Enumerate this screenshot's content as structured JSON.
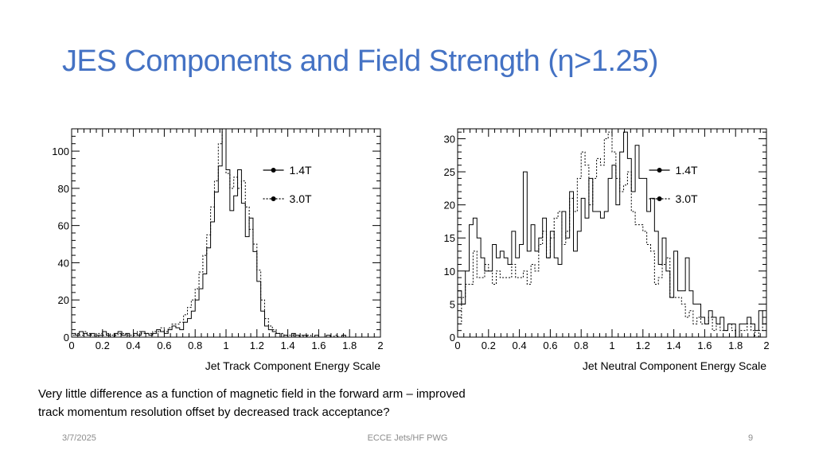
{
  "slide": {
    "title": "JES Components and Field Strength (η>1.25)",
    "caption_line1": "Very little difference as a function of magnetic field in the forward arm – improved",
    "caption_line2": "track momentum resolution offset by decreased track acceptance?",
    "footer_date": "3/7/2025",
    "footer_center": "ECCE Jets/HF PWG",
    "page_number": "9"
  },
  "colors": {
    "title": "#4472c4",
    "axes": "#000000",
    "footer": "#8c8c8c"
  },
  "chart_data": [
    {
      "type": "histogram",
      "xlabel": "Jet Track Component Energy Scale",
      "ylabel": "",
      "xlim": [
        0,
        2
      ],
      "ylim": [
        0,
        112
      ],
      "xticks": [
        0,
        0.2,
        0.4,
        0.6,
        0.8,
        1,
        1.2,
        1.4,
        1.6,
        1.8,
        2
      ],
      "xtick_labels": [
        "0",
        "0.2",
        "0.4",
        "0.6",
        "0.8",
        "1",
        "1.2",
        "1.4",
        "1.6",
        "1.8",
        "2"
      ],
      "yticks": [
        0,
        20,
        40,
        60,
        80,
        100
      ],
      "ytick_labels": [
        "0",
        "20",
        "40",
        "60",
        "80",
        "100"
      ],
      "legend_position": "top-right",
      "bin_edges_range": [
        0,
        2
      ],
      "series": [
        {
          "name": "1.4T",
          "style": "solid",
          "values": [
            2,
            1,
            3,
            2,
            1,
            2,
            0,
            1,
            3,
            1,
            0,
            2,
            3,
            1,
            2,
            0,
            2,
            1,
            3,
            2,
            1,
            2,
            4,
            3,
            2,
            4,
            6,
            5,
            4,
            8,
            10,
            14,
            20,
            26,
            34,
            48,
            62,
            78,
            92,
            112,
            90,
            68,
            76,
            90,
            72,
            54,
            64,
            46,
            30,
            14,
            6,
            4,
            3,
            2,
            0,
            1,
            0,
            2,
            1,
            0,
            1,
            0,
            0,
            1,
            0,
            0,
            1,
            0,
            0,
            0,
            1,
            0,
            0,
            0,
            0,
            0,
            0,
            0,
            0,
            0
          ]
        },
        {
          "name": "3.0T",
          "style": "dotted",
          "values": [
            1,
            2,
            1,
            3,
            2,
            1,
            1,
            2,
            1,
            2,
            1,
            1,
            2,
            2,
            1,
            1,
            1,
            3,
            2,
            2,
            2,
            3,
            3,
            5,
            3,
            5,
            7,
            7,
            8,
            12,
            16,
            20,
            26,
            35,
            44,
            55,
            70,
            84,
            104,
            112,
            88,
            80,
            86,
            80,
            84,
            70,
            58,
            50,
            36,
            20,
            10,
            6,
            4,
            2,
            2,
            1,
            1,
            1,
            0,
            1,
            0,
            1,
            0,
            0,
            0,
            0,
            0,
            0,
            1,
            0,
            0,
            0,
            0,
            0,
            0,
            0,
            0,
            0,
            0,
            0
          ]
        }
      ]
    },
    {
      "type": "histogram",
      "xlabel": "Jet Neutral Component Energy Scale",
      "ylabel": "",
      "xlim": [
        0,
        2
      ],
      "ylim": [
        0,
        31.5
      ],
      "xticks": [
        0,
        0.2,
        0.4,
        0.6,
        0.8,
        1,
        1.2,
        1.4,
        1.6,
        1.8,
        2
      ],
      "xtick_labels": [
        "0",
        "0.2",
        "0.4",
        "0.6",
        "0.8",
        "1",
        "1.2",
        "1.4",
        "1.6",
        "1.8",
        "2"
      ],
      "yticks": [
        0,
        5,
        10,
        15,
        20,
        25,
        30
      ],
      "ytick_labels": [
        "0",
        "5",
        "10",
        "15",
        "20",
        "25",
        "30"
      ],
      "legend_position": "top-right",
      "bin_edges_range": [
        0,
        2
      ],
      "series": [
        {
          "name": "1.4T",
          "style": "solid",
          "values": [
            7,
            5,
            10,
            17,
            18,
            15,
            12,
            10,
            10,
            14,
            12,
            13,
            12,
            11,
            16,
            12,
            14,
            25,
            13,
            17,
            13,
            15,
            18,
            12,
            16,
            12,
            11,
            19,
            15,
            22,
            13,
            16,
            21,
            18,
            24,
            19,
            19,
            18,
            19,
            24,
            26,
            20,
            28,
            31,
            27,
            22,
            29,
            24,
            24,
            19,
            21,
            16,
            11,
            15,
            10,
            6,
            13,
            7,
            7,
            12,
            7,
            5,
            5,
            3,
            2,
            4,
            3,
            2,
            3,
            1,
            2,
            2,
            0,
            2,
            2,
            3,
            2,
            1,
            4,
            2
          ]
        },
        {
          "name": "3.0T",
          "style": "dotted",
          "values": [
            2,
            6,
            8,
            8,
            13,
            9,
            9,
            11,
            10,
            8,
            10,
            9,
            9,
            9,
            11,
            9,
            9,
            10,
            8,
            11,
            10,
            14,
            16,
            12,
            15,
            18,
            19,
            14,
            16,
            21,
            19,
            24,
            28,
            26,
            20,
            24,
            27,
            26,
            30,
            31,
            28,
            24,
            22,
            23,
            25,
            19,
            17,
            17,
            16,
            14,
            13,
            8,
            9,
            11,
            12,
            6,
            6,
            6,
            5,
            3,
            4,
            2,
            3,
            2,
            2,
            3,
            1,
            2,
            1,
            1,
            2,
            1,
            0,
            1,
            1,
            2,
            1,
            0,
            1,
            2
          ]
        }
      ]
    }
  ]
}
